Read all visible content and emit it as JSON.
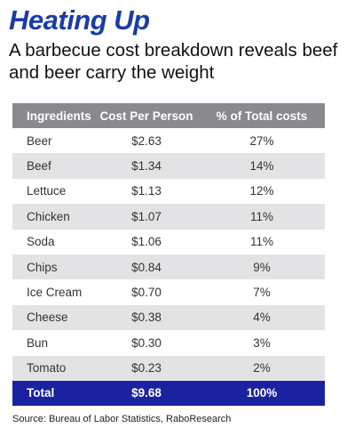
{
  "title": "Heating Up",
  "subtitle": "A barbecue cost breakdown reveals beef and beer carry the weight",
  "source": "Source: Bureau of Labor Statistics, RaboResearch",
  "colors": {
    "title": "#1a3ca8",
    "header_bg": "#8a8a8e",
    "alt_row_bg": "#e3e3e5",
    "total_bg": "#1a22a0"
  },
  "chart_data": {
    "type": "table",
    "title": "Heating Up",
    "subtitle": "A barbecue cost breakdown reveals beef and beer carry the weight",
    "columns": [
      "Ingredients",
      "Cost Per Person",
      "% of Total costs"
    ],
    "rows": [
      [
        "Beer",
        "$2.63",
        "27%"
      ],
      [
        "Beef",
        "$1.34",
        "14%"
      ],
      [
        "Lettuce",
        "$1.13",
        "12%"
      ],
      [
        "Chicken",
        "$1.07",
        "11%"
      ],
      [
        "Soda",
        "$1.06",
        "11%"
      ],
      [
        "Chips",
        "$0.84",
        "9%"
      ],
      [
        "Ice Cream",
        "$0.70",
        "7%"
      ],
      [
        "Cheese",
        "$0.38",
        "4%"
      ],
      [
        "Bun",
        "$0.30",
        "3%"
      ],
      [
        "Tomato",
        "$0.23",
        "2%"
      ]
    ],
    "total": [
      "Total",
      "$9.68",
      "100%"
    ]
  }
}
